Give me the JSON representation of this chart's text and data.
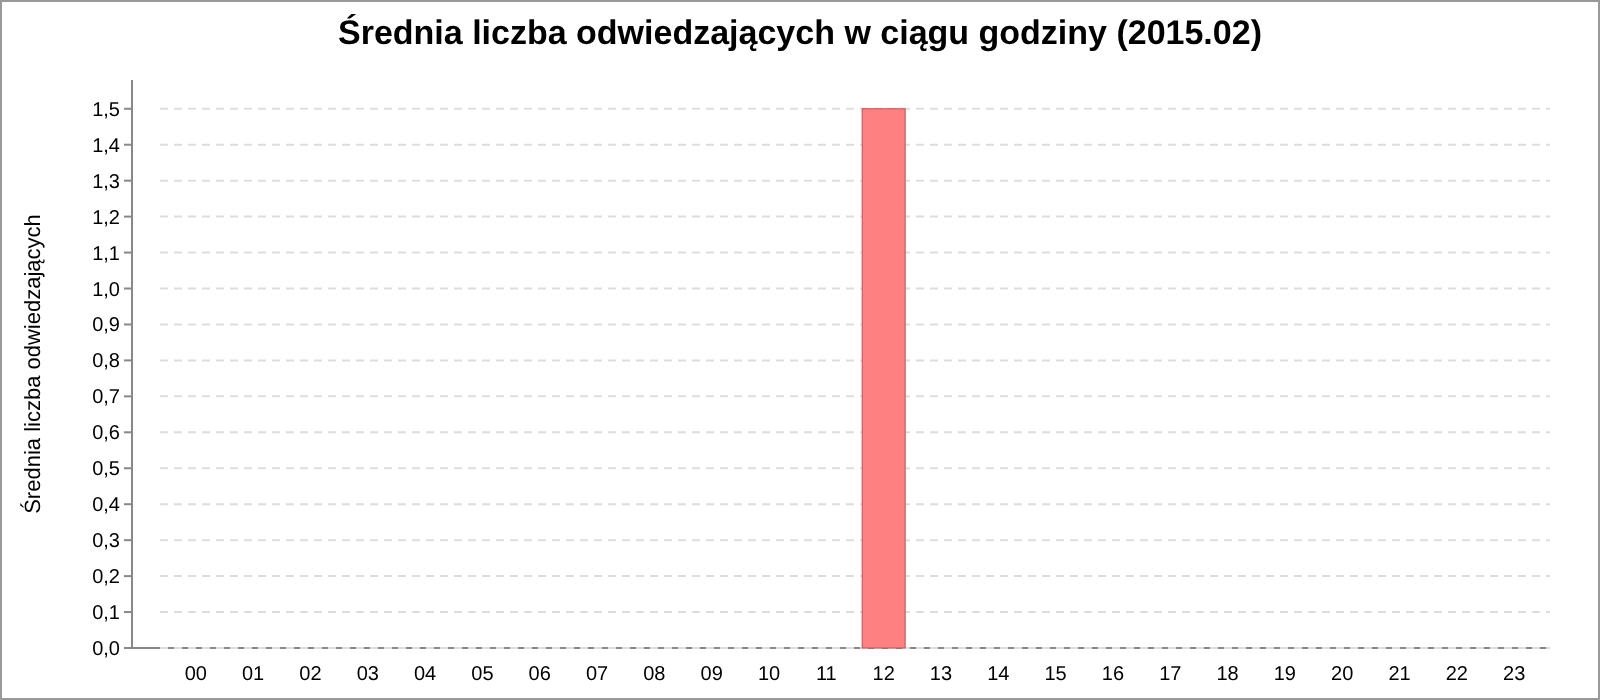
{
  "chart_data": {
    "type": "bar",
    "title": "Średnia liczba odwiedzających w ciągu godziny (2015.02)",
    "ylabel": "Średnia liczba odwiedzających",
    "categories": [
      "00",
      "01",
      "02",
      "03",
      "04",
      "05",
      "06",
      "07",
      "08",
      "09",
      "10",
      "11",
      "12",
      "13",
      "14",
      "15",
      "16",
      "17",
      "18",
      "19",
      "20",
      "21",
      "22",
      "23"
    ],
    "values": [
      0,
      0,
      0,
      0,
      0,
      0,
      0,
      0,
      0,
      0,
      0,
      0,
      1.5,
      0,
      0,
      0,
      0,
      0,
      0,
      0,
      0,
      0,
      0,
      0
    ],
    "color": "#ff8080",
    "ylim": [
      0,
      1.58
    ],
    "yticks": [
      {
        "value": 0,
        "label": "0,0"
      },
      {
        "value": 0.1,
        "label": "0,1"
      },
      {
        "value": 0.2,
        "label": "0,2"
      },
      {
        "value": 0.3,
        "label": "0,3"
      },
      {
        "value": 0.4,
        "label": "0,4"
      },
      {
        "value": 0.5,
        "label": "0,5"
      },
      {
        "value": 0.6,
        "label": "0,6"
      },
      {
        "value": 0.7,
        "label": "0,7"
      },
      {
        "value": 0.8,
        "label": "0,8"
      },
      {
        "value": 0.9,
        "label": "0,9"
      },
      {
        "value": 1.0,
        "label": "1,0"
      },
      {
        "value": 1.1,
        "label": "1,1"
      },
      {
        "value": 1.2,
        "label": "1,2"
      },
      {
        "value": 1.3,
        "label": "1,3"
      },
      {
        "value": 1.4,
        "label": "1,4"
      },
      {
        "value": 1.5,
        "label": "1,5"
      }
    ],
    "grid": "y"
  }
}
